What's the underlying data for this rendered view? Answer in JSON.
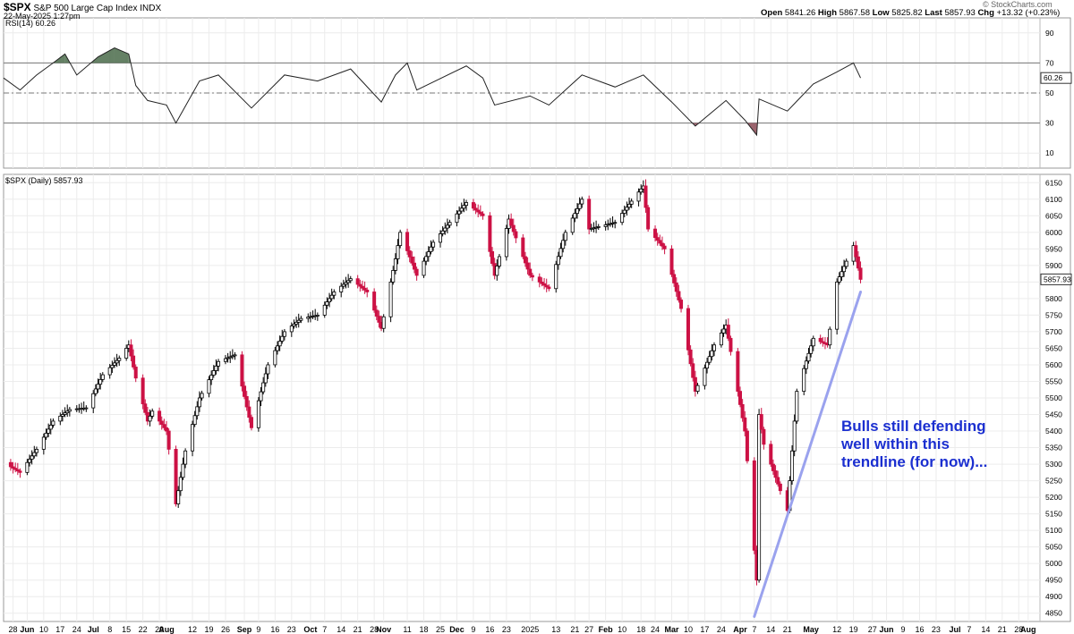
{
  "header": {
    "symbol": "$SPX",
    "name": "S&P 500 Large Cap Index",
    "exchange": "INDX",
    "datetime": "22-May-2025 1:27pm",
    "open_label": "Open",
    "open": "5841.26",
    "high_label": "High",
    "high": "5867.58",
    "low_label": "Low",
    "low": "5825.82",
    "last_label": "Last",
    "last": "5857.93",
    "chg_label": "Chg",
    "chg": "+13.32 (+0.23%)",
    "brand": "© StockCharts.com"
  },
  "rsi_panel": {
    "label": "RSI(14) 60.26",
    "value_tag": "60.26",
    "ticks": [
      90,
      70,
      50,
      30,
      10
    ]
  },
  "price_panel": {
    "label": "$SPX (Daily) 5857.93",
    "value_tag": "5857.93",
    "ticks": [
      6150,
      6100,
      6050,
      6000,
      5950,
      5900,
      5850,
      5800,
      5750,
      5700,
      5650,
      5600,
      5550,
      5500,
      5450,
      5400,
      5350,
      5300,
      5250,
      5200,
      5150,
      5100,
      5050,
      5000,
      4950,
      4900,
      4850
    ]
  },
  "annotation": {
    "line1": "Bulls still defending",
    "line2": "well within this",
    "line3": "trendline (for now)..."
  },
  "colors": {
    "up": "#000000",
    "down": "#cc1144",
    "trendline": "#9aa2ee",
    "annotation": "#1b2fd0",
    "rsi_overbought": "#4a6b4a",
    "rsi_oversold": "#8b4a55"
  },
  "chart_data": {
    "type": "candlestick",
    "x_ticks": [
      {
        "label": "28",
        "date": "2024-05-28"
      },
      {
        "label": "Jun",
        "date": "2024-06-03"
      },
      {
        "label": "10",
        "date": "2024-06-10"
      },
      {
        "label": "17",
        "date": "2024-06-17"
      },
      {
        "label": "24",
        "date": "2024-06-24"
      },
      {
        "label": "Jul",
        "date": "2024-07-01"
      },
      {
        "label": "8",
        "date": "2024-07-08"
      },
      {
        "label": "15",
        "date": "2024-07-15"
      },
      {
        "label": "22",
        "date": "2024-07-22"
      },
      {
        "label": "29",
        "date": "2024-07-29"
      },
      {
        "label": "Aug",
        "date": "2024-08-01"
      },
      {
        "label": "12",
        "date": "2024-08-12"
      },
      {
        "label": "19",
        "date": "2024-08-19"
      },
      {
        "label": "26",
        "date": "2024-08-26"
      },
      {
        "label": "Sep",
        "date": "2024-09-03"
      },
      {
        "label": "9",
        "date": "2024-09-09"
      },
      {
        "label": "16",
        "date": "2024-09-16"
      },
      {
        "label": "23",
        "date": "2024-09-23"
      },
      {
        "label": "Oct",
        "date": "2024-10-01"
      },
      {
        "label": "7",
        "date": "2024-10-07"
      },
      {
        "label": "14",
        "date": "2024-10-14"
      },
      {
        "label": "21",
        "date": "2024-10-21"
      },
      {
        "label": "28",
        "date": "2024-10-28"
      },
      {
        "label": "Nov",
        "date": "2024-11-01"
      },
      {
        "label": "11",
        "date": "2024-11-11"
      },
      {
        "label": "18",
        "date": "2024-11-18"
      },
      {
        "label": "25",
        "date": "2024-11-25"
      },
      {
        "label": "Dec",
        "date": "2024-12-02"
      },
      {
        "label": "9",
        "date": "2024-12-09"
      },
      {
        "label": "16",
        "date": "2024-12-16"
      },
      {
        "label": "23",
        "date": "2024-12-23"
      },
      {
        "label": "2025",
        "date": "2025-01-02"
      },
      {
        "label": "13",
        "date": "2025-01-13"
      },
      {
        "label": "21",
        "date": "2025-01-21"
      },
      {
        "label": "27",
        "date": "2025-01-27"
      },
      {
        "label": "Feb",
        "date": "2025-02-03"
      },
      {
        "label": "10",
        "date": "2025-02-10"
      },
      {
        "label": "18",
        "date": "2025-02-18"
      },
      {
        "label": "24",
        "date": "2025-02-24"
      },
      {
        "label": "Mar",
        "date": "2025-03-03"
      },
      {
        "label": "10",
        "date": "2025-03-10"
      },
      {
        "label": "17",
        "date": "2025-03-17"
      },
      {
        "label": "24",
        "date": "2025-03-24"
      },
      {
        "label": "Apr",
        "date": "2025-04-01"
      },
      {
        "label": "7",
        "date": "2025-04-07"
      },
      {
        "label": "14",
        "date": "2025-04-14"
      },
      {
        "label": "21",
        "date": "2025-04-21"
      },
      {
        "label": "May",
        "date": "2025-05-01"
      },
      {
        "label": "12",
        "date": "2025-05-12"
      },
      {
        "label": "19",
        "date": "2025-05-19"
      },
      {
        "label": "27",
        "date": "2025-05-27"
      },
      {
        "label": "Jun",
        "date": "2025-06-02"
      },
      {
        "label": "9",
        "date": "2025-06-09"
      },
      {
        "label": "16",
        "date": "2025-06-16"
      },
      {
        "label": "23",
        "date": "2025-06-23"
      },
      {
        "label": "Jul",
        "date": "2025-07-01"
      },
      {
        "label": "7",
        "date": "2025-07-07"
      },
      {
        "label": "14",
        "date": "2025-07-14"
      },
      {
        "label": "21",
        "date": "2025-07-21"
      },
      {
        "label": "28",
        "date": "2025-07-28"
      },
      {
        "label": "Aug",
        "date": "2025-08-01"
      }
    ],
    "price_ylim": [
      4825,
      6175
    ],
    "rsi_ylim": [
      0,
      100
    ],
    "rsi_levels": [
      70,
      50,
      30
    ],
    "x_domain": [
      "2024-05-24",
      "2025-08-06"
    ],
    "close_path": [
      {
        "date": "2024-05-24",
        "close": 5305
      },
      {
        "date": "2024-05-31",
        "close": 5275
      },
      {
        "date": "2024-06-07",
        "close": 5345
      },
      {
        "date": "2024-06-14",
        "close": 5430
      },
      {
        "date": "2024-06-21",
        "close": 5465
      },
      {
        "date": "2024-06-28",
        "close": 5470
      },
      {
        "date": "2024-07-05",
        "close": 5570
      },
      {
        "date": "2024-07-12",
        "close": 5620
      },
      {
        "date": "2024-07-16",
        "close": 5660
      },
      {
        "date": "2024-07-19",
        "close": 5560
      },
      {
        "date": "2024-07-24",
        "close": 5430
      },
      {
        "date": "2024-07-26",
        "close": 5460
      },
      {
        "date": "2024-08-01",
        "close": 5400
      },
      {
        "date": "2024-08-05",
        "close": 5180
      },
      {
        "date": "2024-08-09",
        "close": 5340
      },
      {
        "date": "2024-08-15",
        "close": 5500
      },
      {
        "date": "2024-08-23",
        "close": 5610
      },
      {
        "date": "2024-08-30",
        "close": 5630
      },
      {
        "date": "2024-09-06",
        "close": 5410
      },
      {
        "date": "2024-09-13",
        "close": 5600
      },
      {
        "date": "2024-09-20",
        "close": 5700
      },
      {
        "date": "2024-09-27",
        "close": 5740
      },
      {
        "date": "2024-10-04",
        "close": 5750
      },
      {
        "date": "2024-10-11",
        "close": 5820
      },
      {
        "date": "2024-10-18",
        "close": 5860
      },
      {
        "date": "2024-10-25",
        "close": 5820
      },
      {
        "date": "2024-10-31",
        "close": 5710
      },
      {
        "date": "2024-11-06",
        "close": 5920
      },
      {
        "date": "2024-11-08",
        "close": 6000
      },
      {
        "date": "2024-11-15",
        "close": 5870
      },
      {
        "date": "2024-11-22",
        "close": 5970
      },
      {
        "date": "2024-11-29",
        "close": 6030
      },
      {
        "date": "2024-12-06",
        "close": 6090
      },
      {
        "date": "2024-12-13",
        "close": 6050
      },
      {
        "date": "2024-12-18",
        "close": 5870
      },
      {
        "date": "2024-12-24",
        "close": 6040
      },
      {
        "date": "2025-01-02",
        "close": 5870
      },
      {
        "date": "2025-01-10",
        "close": 5830
      },
      {
        "date": "2025-01-17",
        "close": 6000
      },
      {
        "date": "2025-01-24",
        "close": 6100
      },
      {
        "date": "2025-01-27",
        "close": 6010
      },
      {
        "date": "2025-02-07",
        "close": 6030
      },
      {
        "date": "2025-02-19",
        "close": 6140
      },
      {
        "date": "2025-02-21",
        "close": 6010
      },
      {
        "date": "2025-02-28",
        "close": 5950
      },
      {
        "date": "2025-03-07",
        "close": 5770
      },
      {
        "date": "2025-03-13",
        "close": 5520
      },
      {
        "date": "2025-03-21",
        "close": 5660
      },
      {
        "date": "2025-03-26",
        "close": 5720
      },
      {
        "date": "2025-04-03",
        "close": 5400
      },
      {
        "date": "2025-04-08",
        "close": 4950
      },
      {
        "date": "2025-04-09",
        "close": 5450
      },
      {
        "date": "2025-04-11",
        "close": 5360
      },
      {
        "date": "2025-04-21",
        "close": 5160
      },
      {
        "date": "2025-04-25",
        "close": 5520
      },
      {
        "date": "2025-05-02",
        "close": 5680
      },
      {
        "date": "2025-05-08",
        "close": 5660
      },
      {
        "date": "2025-05-12",
        "close": 5850
      },
      {
        "date": "2025-05-19",
        "close": 5960
      },
      {
        "date": "2025-05-22",
        "close": 5858
      }
    ],
    "rsi_path": [
      {
        "date": "2024-05-24",
        "rsi": 60
      },
      {
        "date": "2024-05-31",
        "rsi": 52
      },
      {
        "date": "2024-06-07",
        "rsi": 62
      },
      {
        "date": "2024-06-14",
        "rsi": 70
      },
      {
        "date": "2024-06-19",
        "rsi": 76
      },
      {
        "date": "2024-06-24",
        "rsi": 62
      },
      {
        "date": "2024-07-03",
        "rsi": 74
      },
      {
        "date": "2024-07-10",
        "rsi": 80
      },
      {
        "date": "2024-07-16",
        "rsi": 76
      },
      {
        "date": "2024-07-19",
        "rsi": 55
      },
      {
        "date": "2024-07-24",
        "rsi": 45
      },
      {
        "date": "2024-08-01",
        "rsi": 42
      },
      {
        "date": "2024-08-05",
        "rsi": 30
      },
      {
        "date": "2024-08-15",
        "rsi": 58
      },
      {
        "date": "2024-08-23",
        "rsi": 62
      },
      {
        "date": "2024-09-06",
        "rsi": 40
      },
      {
        "date": "2024-09-20",
        "rsi": 62
      },
      {
        "date": "2024-10-04",
        "rsi": 58
      },
      {
        "date": "2024-10-18",
        "rsi": 66
      },
      {
        "date": "2024-10-31",
        "rsi": 44
      },
      {
        "date": "2024-11-06",
        "rsi": 62
      },
      {
        "date": "2024-11-11",
        "rsi": 70
      },
      {
        "date": "2024-11-15",
        "rsi": 52
      },
      {
        "date": "2024-12-06",
        "rsi": 68
      },
      {
        "date": "2024-12-13",
        "rsi": 60
      },
      {
        "date": "2024-12-18",
        "rsi": 42
      },
      {
        "date": "2025-01-02",
        "rsi": 48
      },
      {
        "date": "2025-01-10",
        "rsi": 42
      },
      {
        "date": "2025-01-24",
        "rsi": 62
      },
      {
        "date": "2025-02-07",
        "rsi": 54
      },
      {
        "date": "2025-02-19",
        "rsi": 62
      },
      {
        "date": "2025-03-03",
        "rsi": 44
      },
      {
        "date": "2025-03-13",
        "rsi": 28
      },
      {
        "date": "2025-03-26",
        "rsi": 45
      },
      {
        "date": "2025-04-03",
        "rsi": 32
      },
      {
        "date": "2025-04-08",
        "rsi": 22
      },
      {
        "date": "2025-04-09",
        "rsi": 46
      },
      {
        "date": "2025-04-21",
        "rsi": 38
      },
      {
        "date": "2025-05-02",
        "rsi": 56
      },
      {
        "date": "2025-05-12",
        "rsi": 64
      },
      {
        "date": "2025-05-19",
        "rsi": 70
      },
      {
        "date": "2025-05-22",
        "rsi": 60
      }
    ],
    "trendline": [
      {
        "date": "2025-04-07",
        "price": 4840
      },
      {
        "date": "2025-05-22",
        "price": 5820
      }
    ]
  }
}
